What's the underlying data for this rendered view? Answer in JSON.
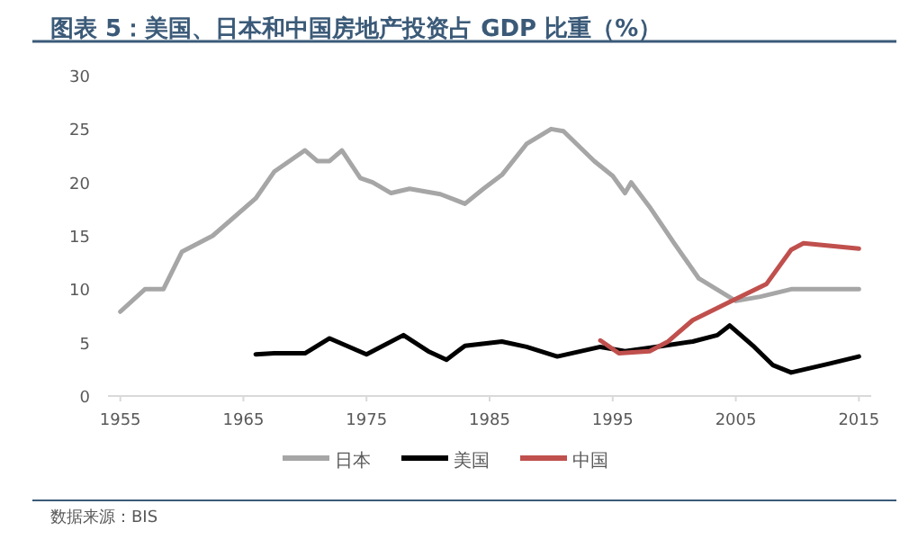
{
  "chart_data": {
    "type": "line",
    "title": "图表 5：美国、日本和中国房地产投资占 GDP 比重（%）",
    "annotations": [
      "数据来源：BIS"
    ],
    "xlim": [
      1954,
      2016
    ],
    "xticks": [
      1955,
      1965,
      1975,
      1985,
      1995,
      2005,
      2015
    ],
    "ylim": [
      0,
      30
    ],
    "yticks": [
      0,
      5,
      10,
      15,
      20,
      25,
      30
    ],
    "grid": false,
    "legend": "bottom",
    "line_style": "solid",
    "marker": "none",
    "series": [
      {
        "name": "日本",
        "color": "#a6a6a6",
        "x": [
          1955,
          1957,
          1958.5,
          1960,
          1962.5,
          1966,
          1967.5,
          1970,
          1971,
          1972,
          1973,
          1974.5,
          1975.5,
          1977,
          1978.5,
          1981,
          1983,
          1984.5,
          1986,
          1988,
          1990,
          1991,
          1993.5,
          1995,
          1996,
          1996.5,
          1998,
          2000,
          2002,
          2005,
          2007,
          2009.5,
          2015
        ],
        "values": [
          7.9,
          10,
          10,
          13.5,
          15,
          18.5,
          21,
          23,
          22,
          22,
          23,
          20.4,
          20,
          19,
          19.4,
          18.9,
          18,
          19.4,
          20.7,
          23.6,
          25,
          24.8,
          22,
          20.6,
          19,
          20,
          17.7,
          14.3,
          11,
          8.9,
          9.3,
          10,
          10
        ]
      },
      {
        "name": "美国",
        "color": "#000000",
        "x": [
          1966,
          1967.5,
          1970,
          1972,
          1975,
          1978,
          1980,
          1981.5,
          1983,
          1986,
          1988,
          1990.5,
          1994,
          1996,
          1998.5,
          2001.5,
          2003.5,
          2004.5,
          2006.5,
          2008,
          2009.5,
          2012.5,
          2015
        ],
        "values": [
          3.9,
          4,
          4,
          5.4,
          3.9,
          5.7,
          4.2,
          3.4,
          4.7,
          5.1,
          4.6,
          3.7,
          4.6,
          4.2,
          4.6,
          5.1,
          5.7,
          6.6,
          4.6,
          2.9,
          2.2,
          3,
          3.7
        ]
      },
      {
        "name": "中国",
        "color": "#c0504d",
        "x": [
          1994,
          1995.5,
          1998,
          1999.5,
          2001.5,
          2004.5,
          2007.5,
          2009.5,
          2010.5,
          2015
        ],
        "values": [
          5.2,
          4,
          4.2,
          5.1,
          7.1,
          8.8,
          10.5,
          13.7,
          14.3,
          13.8
        ]
      }
    ]
  }
}
